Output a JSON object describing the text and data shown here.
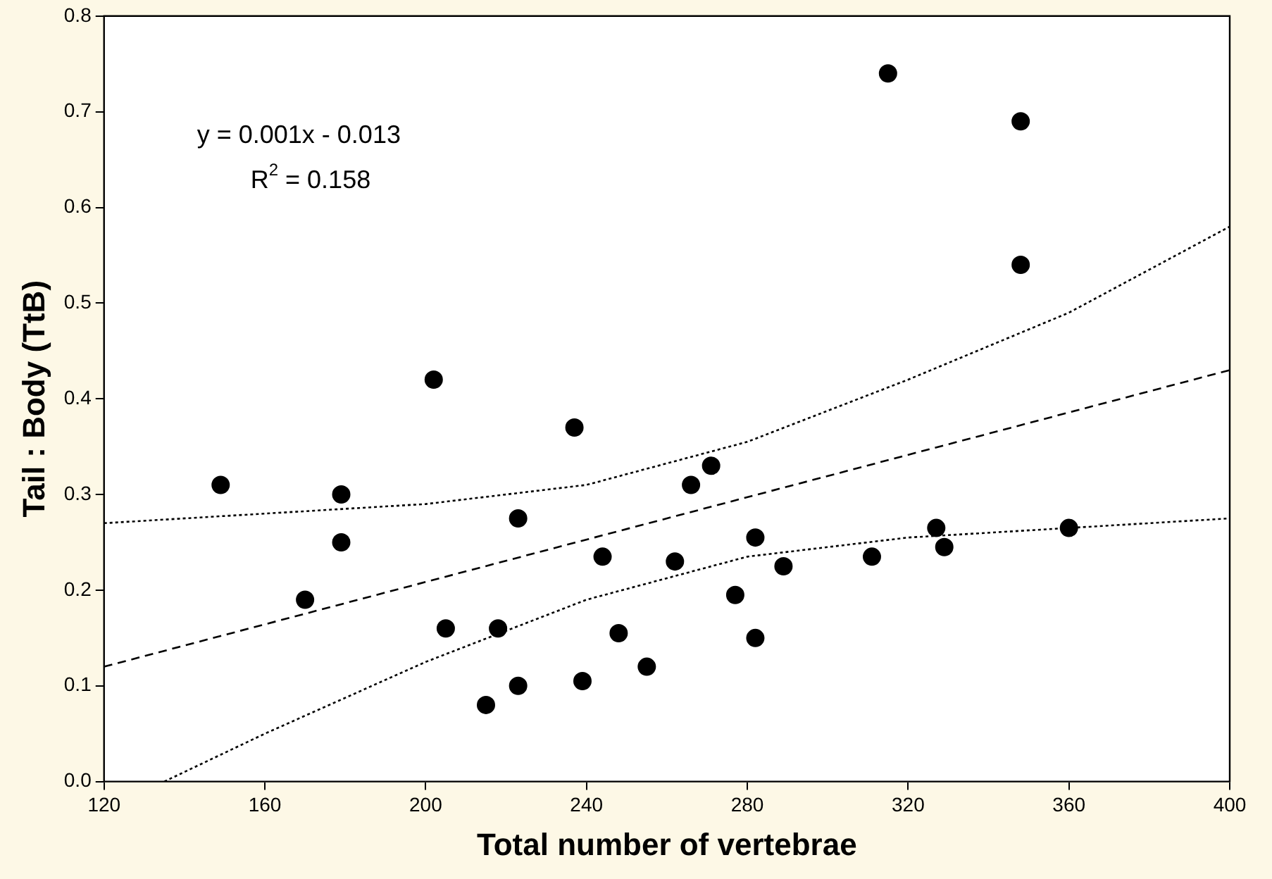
{
  "chart_data": {
    "type": "scatter",
    "xlabel": "Total number of vertebrae",
    "ylabel": "Tail : Body (TtB)",
    "xlim": [
      120,
      400
    ],
    "xticks": [
      120,
      160,
      200,
      240,
      280,
      320,
      360,
      400
    ],
    "ylim": [
      0,
      0.8
    ],
    "yticks": [
      {
        "value": 0,
        "label": "0.0"
      },
      0.1,
      0.2,
      0.3,
      0.4,
      0.5,
      0.6,
      0.7,
      0.8
    ],
    "grid": false,
    "legend": false,
    "annotations": [
      "y = 0.001x - 0.013",
      "R$^{2}$ = 0.158"
    ],
    "series": [
      {
        "marker": "circle",
        "color": "#000000",
        "x": [
          149,
          170,
          179,
          179,
          202,
          205,
          215,
          218,
          223,
          223,
          237,
          239,
          244,
          248,
          255,
          262,
          266,
          271,
          277,
          282,
          282,
          289,
          311,
          315,
          327,
          329,
          348,
          348,
          360
        ],
        "values": [
          0.31,
          0.19,
          0.3,
          0.25,
          0.42,
          0.16,
          0.08,
          0.16,
          0.275,
          0.1,
          0.37,
          0.105,
          0.235,
          0.155,
          0.12,
          0.23,
          0.31,
          0.33,
          0.195,
          0.255,
          0.15,
          0.225,
          0.235,
          0.74,
          0.265,
          0.245,
          0.69,
          0.54,
          0.265
        ]
      },
      {
        "type": "line",
        "marker": "none",
        "color": "#000000",
        "line_style": "dashed",
        "x": [
          120,
          400
        ],
        "values": [
          0.12,
          0.43
        ]
      },
      {
        "type": "line",
        "marker": "none",
        "color": "#000000",
        "line_style": "dotted",
        "x": [
          120,
          160,
          200,
          240,
          280,
          320,
          360,
          400
        ],
        "values": [
          0.27,
          0.28,
          0.29,
          0.31,
          0.355,
          0.42,
          0.49,
          0.58
        ]
      },
      {
        "type": "line",
        "marker": "none",
        "color": "#000000",
        "line_style": "dotted",
        "x": [
          135,
          160,
          200,
          240,
          280,
          320,
          360,
          400
        ],
        "values": [
          0,
          0.05,
          0.125,
          0.19,
          0.235,
          0.255,
          0.265,
          0.275
        ]
      }
    ]
  }
}
